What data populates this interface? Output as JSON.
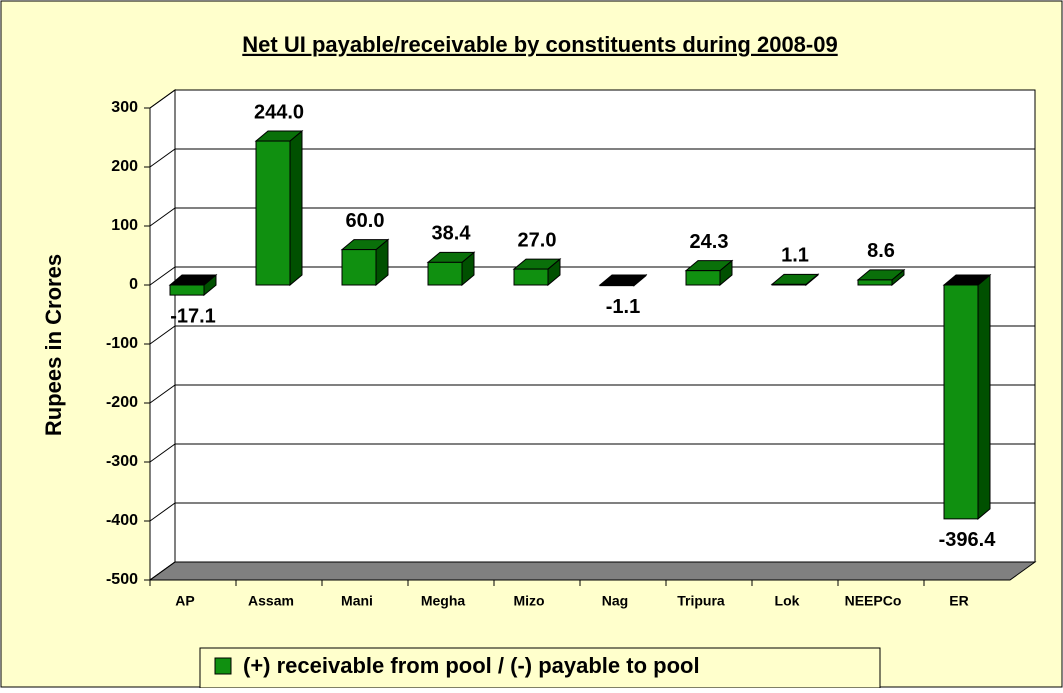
{
  "chart_data": {
    "type": "bar3d",
    "title": "Net UI payable/receivable by constituents during 2008-09",
    "y_axis_label": "Rupees in Crores",
    "categories": [
      "AP",
      "Assam",
      "Mani",
      "Megha",
      "Mizo",
      "Nag",
      "Tripura",
      "Lok",
      "NEEPCo",
      "ER"
    ],
    "series": [
      {
        "name": "(+) receivable from pool / (-) payable to pool",
        "color": "#109010",
        "values": [
          -17.1,
          244.0,
          60.0,
          38.4,
          27.0,
          -1.1,
          24.3,
          1.1,
          8.6,
          -396.4
        ],
        "value_labels": [
          "-17.1",
          "244.0",
          "60.0",
          "38.4",
          "27.0",
          "-1.1",
          "24.3",
          "1.1",
          "8.6",
          "-396.4"
        ]
      }
    ],
    "ylim": [
      -500,
      300
    ],
    "yticks": [
      -500,
      -400,
      -300,
      -200,
      -100,
      0,
      100,
      200,
      300
    ],
    "grid": true,
    "legend": "bottom"
  }
}
